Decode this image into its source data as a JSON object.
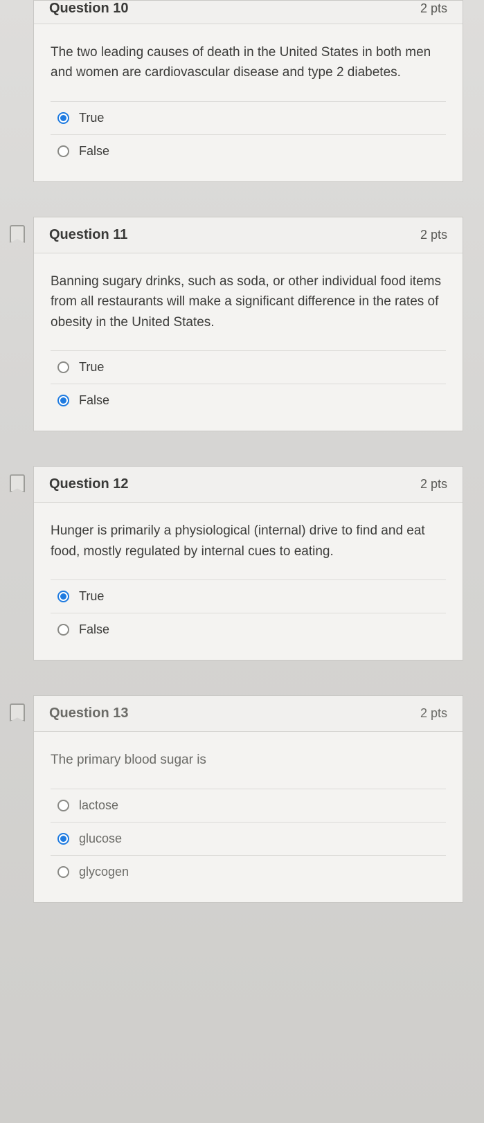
{
  "questions": [
    {
      "number": "Question 10",
      "points": "2 pts",
      "text": "The two leading causes of death in the United States in both men and women are cardiovascular disease and type 2 diabetes.",
      "options": [
        {
          "label": "True",
          "selected": true
        },
        {
          "label": "False",
          "selected": false
        }
      ],
      "bookmark": false,
      "cutoff_top": true
    },
    {
      "number": "Question 11",
      "points": "2 pts",
      "text": "Banning sugary drinks, such as soda, or other individual food items from all restaurants will make a significant difference in the rates of obesity in the United States.",
      "options": [
        {
          "label": "True",
          "selected": false
        },
        {
          "label": "False",
          "selected": true
        }
      ],
      "bookmark": true
    },
    {
      "number": "Question 12",
      "points": "2 pts",
      "text": "Hunger is primarily a physiological (internal) drive to find and eat food, mostly regulated by internal cues to eating.",
      "options": [
        {
          "label": "True",
          "selected": true
        },
        {
          "label": "False",
          "selected": false
        }
      ],
      "bookmark": true
    },
    {
      "number": "Question 13",
      "points": "2 pts",
      "text": "The primary blood sugar is",
      "options": [
        {
          "label": "lactose",
          "selected": false
        },
        {
          "label": "glucose",
          "selected": true
        },
        {
          "label": "glycogen",
          "selected": false
        }
      ],
      "bookmark": true,
      "dim": true,
      "cutoff_bottom": true
    }
  ]
}
